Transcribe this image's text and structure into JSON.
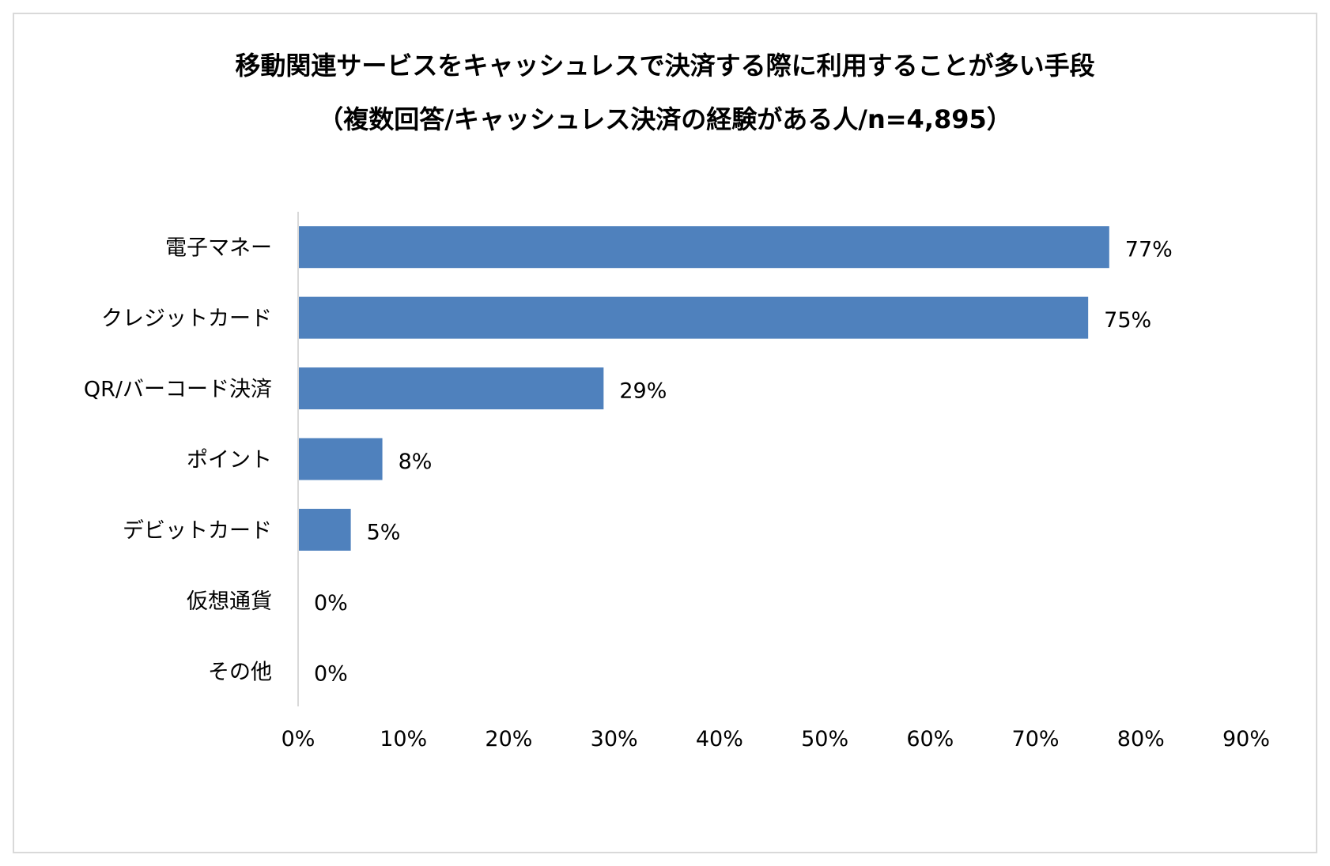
{
  "chart_data": {
    "type": "bar",
    "orientation": "horizontal",
    "title": "移動関連サービスをキャッシュレスで決済する際に利用することが多い手段",
    "subtitle": "（複数回答/キャッシュレス決済の経験がある人/n=4,895）",
    "categories": [
      "電子マネー",
      "クレジットカード",
      "QR/バーコード決済",
      "ポイント",
      "デビットカード",
      "仮想通貨",
      "その他"
    ],
    "values": [
      77,
      75,
      29,
      8,
      5,
      0,
      0
    ],
    "value_labels": [
      "77%",
      "75%",
      "29%",
      "8%",
      "5%",
      "0%",
      "0%"
    ],
    "x_ticks": [
      0,
      10,
      20,
      30,
      40,
      50,
      60,
      70,
      80,
      90
    ],
    "x_tick_labels": [
      "0%",
      "10%",
      "20%",
      "30%",
      "40%",
      "50%",
      "60%",
      "70%",
      "80%",
      "90%"
    ],
    "xlim": [
      0,
      90
    ],
    "grid": false,
    "legend": "none",
    "colors": {
      "bar": "#4f81bd",
      "axis": "#d9d9d9",
      "border": "#d9d9d9",
      "text": "#000000"
    }
  }
}
